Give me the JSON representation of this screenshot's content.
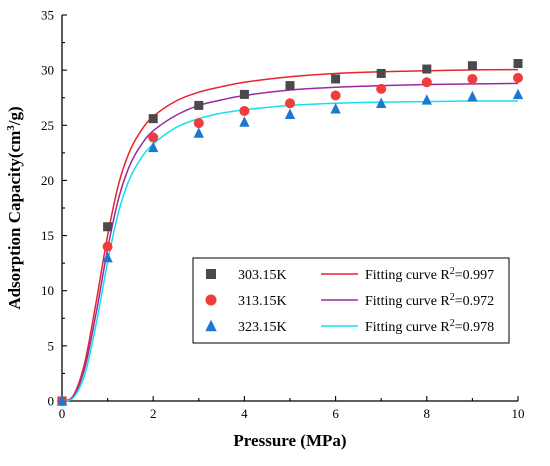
{
  "chart_data": {
    "type": "scatter",
    "xlabel": "Pressure (MPa)",
    "ylabel_main": "Adsorption Capacity(cm",
    "ylabel_sup": "3",
    "ylabel_tail": "/g)",
    "xlim": [
      0,
      10
    ],
    "ylim": [
      0,
      35
    ],
    "x_ticks": [
      0,
      2,
      4,
      6,
      8,
      10
    ],
    "y_ticks": [
      0,
      5,
      10,
      15,
      20,
      25,
      30,
      35
    ],
    "legend_position": "lower-right",
    "grid": false,
    "series": [
      {
        "name": "303.15K",
        "marker": "square",
        "color": "#4a4a4a",
        "x": [
          0,
          1,
          2,
          3,
          4,
          5,
          6,
          7,
          8,
          9,
          10
        ],
        "y": [
          0,
          15.8,
          25.6,
          26.8,
          27.8,
          28.6,
          29.2,
          29.7,
          30.1,
          30.4,
          30.6
        ],
        "fit_label": "Fitting curve R",
        "fit_sup": "2",
        "fit_r2": "=0.997",
        "fit_color": "#e8232a",
        "fit_x": [
          0,
          0.25,
          0.5,
          0.75,
          1,
          1.25,
          1.5,
          1.75,
          2,
          2.5,
          3,
          3.5,
          4,
          5,
          6,
          7,
          8,
          9,
          10
        ],
        "fit_y": [
          0,
          0.5,
          3.5,
          9.0,
          15.0,
          19.8,
          22.8,
          24.6,
          25.8,
          27.2,
          28.0,
          28.5,
          28.9,
          29.4,
          29.7,
          29.85,
          29.95,
          30.02,
          30.05
        ]
      },
      {
        "name": "313.15K",
        "marker": "circle",
        "color": "#f03c3c",
        "x": [
          0,
          1,
          2,
          3,
          4,
          5,
          6,
          7,
          8,
          9,
          10
        ],
        "y": [
          0,
          14.0,
          23.9,
          25.2,
          26.3,
          27.0,
          27.7,
          28.3,
          28.9,
          29.2,
          29.3
        ],
        "fit_label": "Fitting curve R",
        "fit_sup": "2",
        "fit_r2": "=0.972",
        "fit_color": "#9b2aa0",
        "fit_x": [
          0,
          0.25,
          0.5,
          0.75,
          1,
          1.25,
          1.5,
          1.75,
          2,
          2.5,
          3,
          3.5,
          4,
          5,
          6,
          7,
          8,
          9,
          10
        ],
        "fit_y": [
          0,
          0.4,
          3.0,
          8.0,
          13.8,
          18.5,
          21.5,
          23.3,
          24.5,
          25.9,
          26.8,
          27.3,
          27.7,
          28.2,
          28.45,
          28.6,
          28.7,
          28.75,
          28.8
        ]
      },
      {
        "name": "323.15K",
        "marker": "triangle",
        "color": "#1e78d2",
        "x": [
          0,
          1,
          2,
          3,
          4,
          5,
          6,
          7,
          8,
          9,
          10
        ],
        "y": [
          0,
          13.0,
          23.0,
          24.3,
          25.3,
          26.0,
          26.5,
          27.0,
          27.3,
          27.6,
          27.8
        ],
        "fit_label": "Fitting curve R",
        "fit_sup": "2",
        "fit_r2": "=0.978",
        "fit_color": "#14e0f0",
        "fit_x": [
          0,
          0.25,
          0.5,
          0.75,
          1,
          1.25,
          1.5,
          1.75,
          2,
          2.5,
          3,
          3.5,
          4,
          5,
          6,
          7,
          8,
          9,
          10
        ],
        "fit_y": [
          0,
          0.3,
          2.4,
          7.0,
          12.6,
          17.3,
          20.3,
          22.1,
          23.3,
          24.8,
          25.6,
          26.1,
          26.4,
          26.8,
          27.0,
          27.1,
          27.15,
          27.2,
          27.2
        ]
      }
    ]
  }
}
